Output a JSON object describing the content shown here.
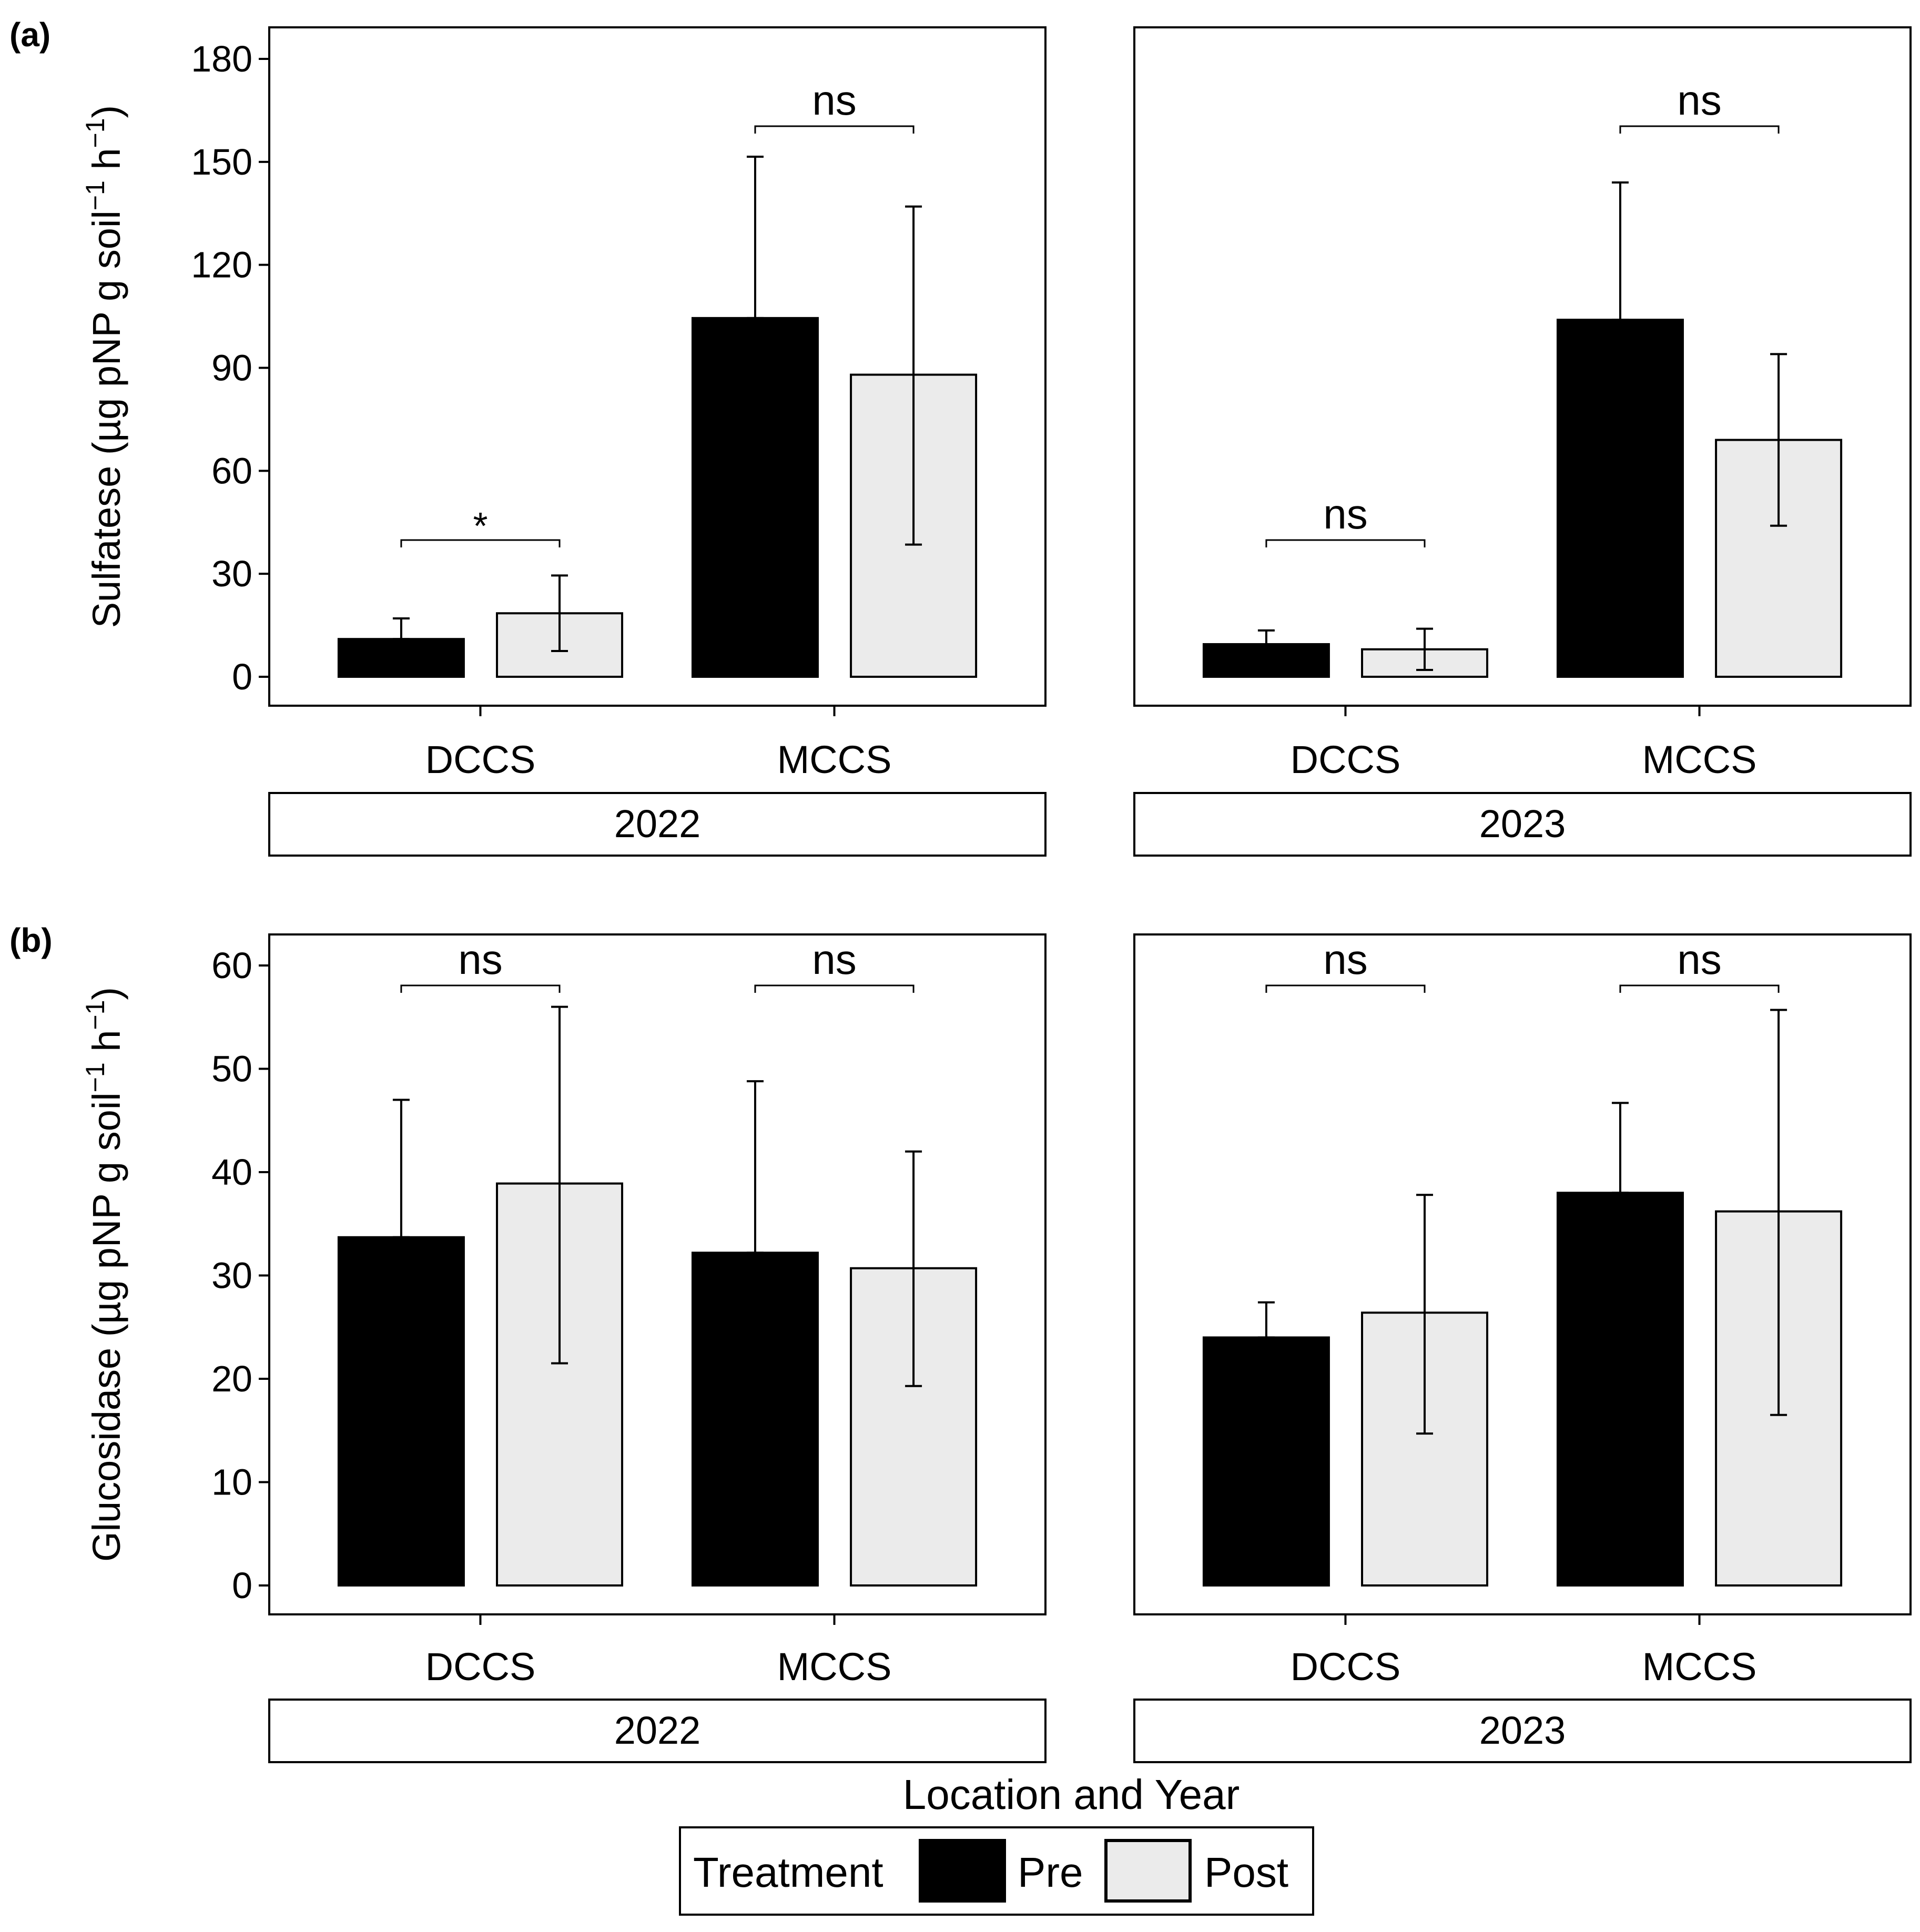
{
  "chart_data": {
    "type": "bar",
    "xlabel": "Location and Year",
    "legend": {
      "title": "Treatment",
      "position": "bottom",
      "entries": [
        {
          "name": "Pre",
          "color": "#000000"
        },
        {
          "name": "Post",
          "color": "#ebebeb"
        }
      ]
    },
    "panels": [
      {
        "tag": "(a)",
        "ylabel_main": "Sulfatese (µg pNP g soil",
        "ylabel_mid": " h",
        "ylabel_close": ")",
        "ylabel_sup": "−1",
        "ylim": [
          0,
          180
        ],
        "yticks": [
          0,
          30,
          60,
          90,
          120,
          150,
          180
        ],
        "yticklabels": [
          "0",
          "30",
          "60",
          "90",
          "120",
          "150",
          "180"
        ],
        "facets": [
          {
            "year": "2022",
            "groups": [
              {
                "location": "DCCS",
                "sig": "*",
                "pre": {
                  "value": 11,
                  "err_low": 11,
                  "err_high": 17
                },
                "post": {
                  "value": 18.5,
                  "err_low": 7.5,
                  "err_high": 29.5
                }
              },
              {
                "location": "MCCS",
                "sig": "ns",
                "pre": {
                  "value": 104.5,
                  "err_low": 104.5,
                  "err_high": 151.5
                },
                "post": {
                  "value": 88,
                  "err_low": 38.5,
                  "err_high": 137
                }
              }
            ]
          },
          {
            "year": "2023",
            "groups": [
              {
                "location": "DCCS",
                "sig": "ns",
                "pre": {
                  "value": 9.5,
                  "err_low": 9.5,
                  "err_high": 13.5
                },
                "post": {
                  "value": 8,
                  "err_low": 2,
                  "err_high": 14
                }
              },
              {
                "location": "MCCS",
                "sig": "ns",
                "pre": {
                  "value": 104,
                  "err_low": 104,
                  "err_high": 144
                },
                "post": {
                  "value": 69,
                  "err_low": 44,
                  "err_high": 94
                }
              }
            ]
          }
        ]
      },
      {
        "tag": "(b)",
        "ylabel_main": "Glucosidase (µg pNP g soil",
        "ylabel_mid": " h",
        "ylabel_close": ")",
        "ylabel_sup": "−1",
        "ylim": [
          0,
          60
        ],
        "yticks": [
          0,
          10,
          20,
          30,
          40,
          50,
          60
        ],
        "yticklabels": [
          "0",
          "10",
          "20",
          "30",
          "40",
          "50",
          "60"
        ],
        "facets": [
          {
            "year": "2022",
            "groups": [
              {
                "location": "DCCS",
                "sig": "ns",
                "pre": {
                  "value": 33.7,
                  "err_low": 33.7,
                  "err_high": 47
                },
                "post": {
                  "value": 38.9,
                  "err_low": 21.5,
                  "err_high": 56
                }
              },
              {
                "location": "MCCS",
                "sig": "ns",
                "pre": {
                  "value": 32.2,
                  "err_low": 32.2,
                  "err_high": 48.8
                },
                "post": {
                  "value": 30.7,
                  "err_low": 19.3,
                  "err_high": 42
                }
              }
            ]
          },
          {
            "year": "2023",
            "groups": [
              {
                "location": "DCCS",
                "sig": "ns",
                "pre": {
                  "value": 24,
                  "err_low": 24,
                  "err_high": 27.4
                },
                "post": {
                  "value": 26.4,
                  "err_low": 14.7,
                  "err_high": 37.8
                }
              },
              {
                "location": "MCCS",
                "sig": "ns",
                "pre": {
                  "value": 38,
                  "err_low": 38,
                  "err_high": 46.7
                },
                "post": {
                  "value": 36.2,
                  "err_low": 16.5,
                  "err_high": 55.7
                }
              }
            ]
          }
        ]
      }
    ]
  }
}
